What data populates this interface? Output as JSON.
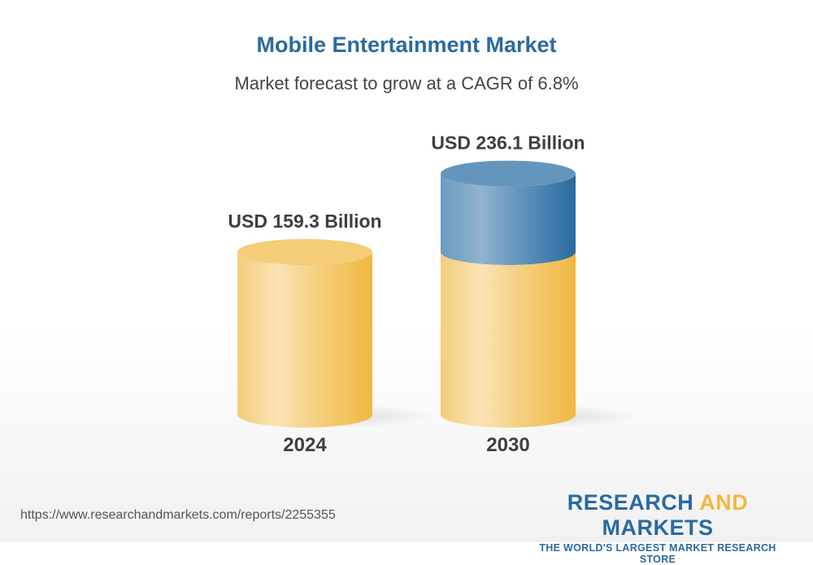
{
  "title": "Mobile Entertainment Market",
  "subtitle": "Market forecast to grow at a CAGR of 6.8%",
  "chart_data": {
    "type": "bar",
    "style": "3d-cylinder",
    "categories": [
      "2024",
      "2030"
    ],
    "values": [
      159.3,
      236.1
    ],
    "data_labels": [
      "USD 159.3 Billion",
      "USD 236.1 Billion"
    ],
    "unit": "USD Billion",
    "colors": {
      "base": "#f3c462",
      "growth": "#2d6ca0"
    }
  },
  "footer": {
    "url": "https://www.researchandmarkets.com/reports/2255355",
    "logo": {
      "part1": "RESEARCH ",
      "part2": "AND",
      "part3": " MARKETS",
      "tagline": "THE WORLD'S LARGEST MARKET RESEARCH STORE"
    }
  }
}
